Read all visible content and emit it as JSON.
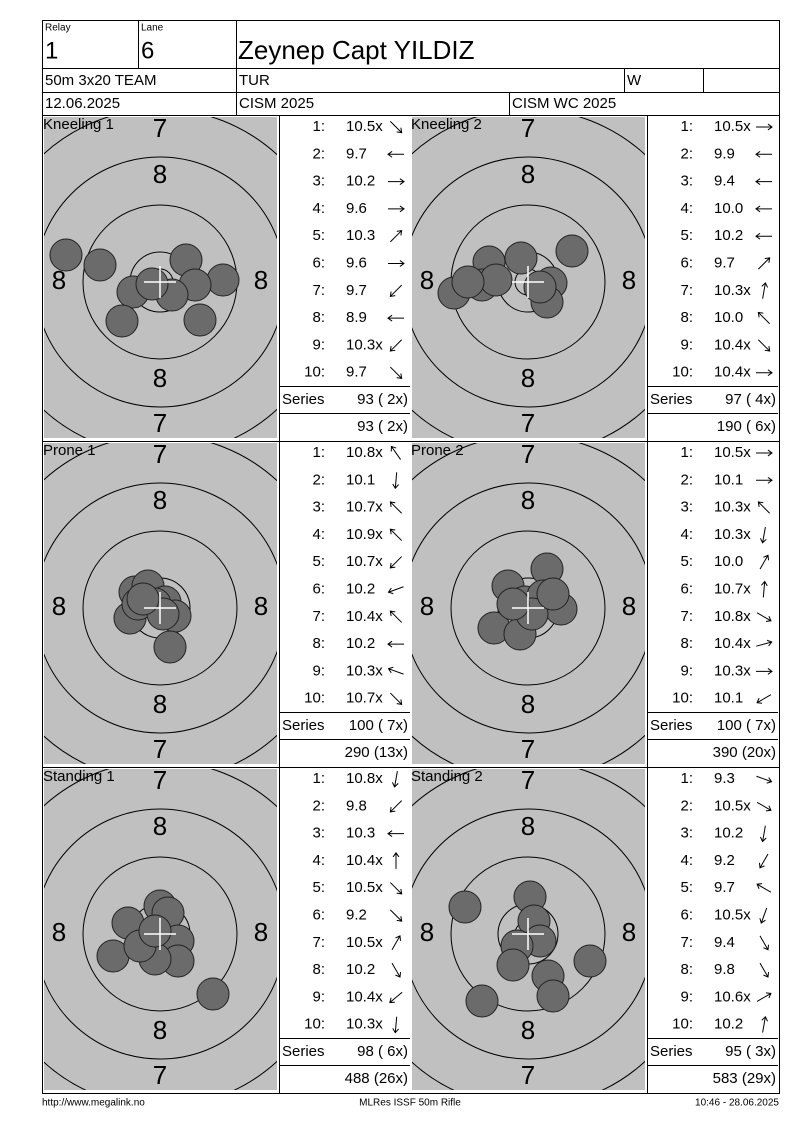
{
  "header": {
    "relay_label": "Relay",
    "relay": "1",
    "lane_label": "Lane",
    "lane": "6",
    "name": "Zeynep Capt YILDIZ",
    "event": "50m 3x20 TEAM",
    "nation": "TUR",
    "gender": "W",
    "date": "12.06.2025",
    "competition": "CISM 2025",
    "match": "CISM WC 2025"
  },
  "ring_labels": [
    "7",
    "8"
  ],
  "series_label": "Series",
  "series": [
    {
      "title": "Kneeling 1",
      "shots": [
        "10.5x",
        "9.7",
        "10.2",
        "9.6",
        "10.3",
        "9.6",
        "9.7",
        "8.9",
        "10.3x",
        "9.7"
      ],
      "series_total": "93 ( 2x)",
      "running_total": "93 ( 2x)"
    },
    {
      "title": "Kneeling 2",
      "shots": [
        "10.5x",
        "9.9",
        "9.4",
        "10.0",
        "10.2",
        "9.7",
        "10.3x",
        "10.0",
        "10.4x",
        "10.4x"
      ],
      "series_total": "97 ( 4x)",
      "running_total": "190 ( 6x)"
    },
    {
      "title": "Prone 1",
      "shots": [
        "10.8x",
        "10.1",
        "10.7x",
        "10.9x",
        "10.7x",
        "10.2",
        "10.4x",
        "10.2",
        "10.3x",
        "10.7x"
      ],
      "series_total": "100 ( 7x)",
      "running_total": "290 (13x)"
    },
    {
      "title": "Prone 2",
      "shots": [
        "10.5x",
        "10.1",
        "10.3x",
        "10.3x",
        "10.0",
        "10.7x",
        "10.8x",
        "10.4x",
        "10.3x",
        "10.1"
      ],
      "series_total": "100 ( 7x)",
      "running_total": "390 (20x)"
    },
    {
      "title": "Standing 1",
      "shots": [
        "10.8x",
        "9.8",
        "10.3",
        "10.4x",
        "10.5x",
        "9.2",
        "10.5x",
        "10.2",
        "10.4x",
        "10.3x"
      ],
      "series_total": "98 ( 6x)",
      "running_total": "488 (26x)"
    },
    {
      "title": "Standing 2",
      "shots": [
        "9.3",
        "10.5x",
        "10.2",
        "9.2",
        "9.7",
        "10.5x",
        "9.4",
        "9.8",
        "10.6x",
        "10.2"
      ],
      "series_total": "95 ( 3x)",
      "running_total": "583 (29x)"
    }
  ],
  "footer": {
    "left": "http://www.megalink.no",
    "center": "MLRes ISSF 50m Rifle",
    "right": "10:46 - 28.06.2025"
  }
}
